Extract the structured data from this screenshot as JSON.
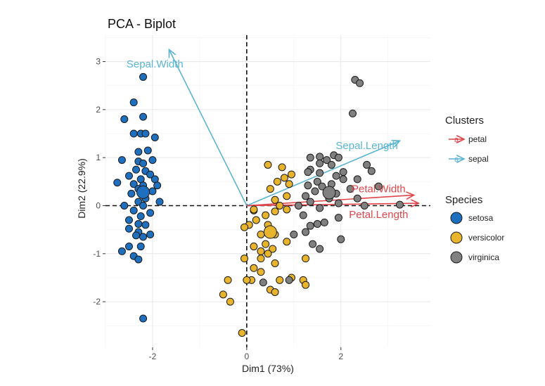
{
  "chart_data": {
    "type": "scatter",
    "title": "PCA - Biplot",
    "xlabel": "Dim1 (73%)",
    "ylabel": "Dim2 (22.9%)",
    "xlim": [
      -3.0,
      3.9
    ],
    "ylim": [
      -2.95,
      3.55
    ],
    "xticks": [
      -2,
      0,
      2
    ],
    "yticks": [
      -2,
      -1,
      0,
      1,
      2,
      3
    ],
    "grid": true,
    "legend_position": "right",
    "colors": {
      "setosa": "#1f6fbf",
      "versicolor": "#e7b42c",
      "virginica": "#808080",
      "petal": "#e0454a",
      "sepal": "#5ab4d3"
    },
    "legends": {
      "clusters": {
        "title": "Clusters",
        "items": [
          "petal",
          "sepal"
        ]
      },
      "species": {
        "title": "Species",
        "items": [
          "setosa",
          "versicolor",
          "virginica"
        ]
      }
    },
    "series": [
      {
        "name": "setosa",
        "points": [
          [
            -2.2,
            2.68
          ],
          [
            -2.4,
            2.15
          ],
          [
            -2.6,
            1.8
          ],
          [
            -2.2,
            1.85
          ],
          [
            -2.25,
            1.5
          ],
          [
            -2.15,
            1.5
          ],
          [
            -1.95,
            1.42
          ],
          [
            -2.4,
            1.5
          ],
          [
            -2.3,
            1.12
          ],
          [
            -2.1,
            1.15
          ],
          [
            -2.0,
            0.95
          ],
          [
            -2.65,
            0.95
          ],
          [
            -2.3,
            0.92
          ],
          [
            -2.2,
            0.88
          ],
          [
            -2.35,
            0.75
          ],
          [
            -2.15,
            0.72
          ],
          [
            -2.05,
            0.65
          ],
          [
            -2.5,
            0.62
          ],
          [
            -2.25,
            0.55
          ],
          [
            -1.95,
            0.55
          ],
          [
            -2.75,
            0.48
          ],
          [
            -2.4,
            0.45
          ],
          [
            -2.2,
            0.42
          ],
          [
            -1.9,
            0.42
          ],
          [
            -2.3,
            0.35
          ],
          [
            -2.0,
            0.3
          ],
          [
            -2.45,
            0.25
          ],
          [
            -2.15,
            0.15
          ],
          [
            -2.3,
            0.08
          ],
          [
            -1.85,
            0.08
          ],
          [
            -2.6,
            0.0
          ],
          [
            -2.2,
            0.0
          ],
          [
            -2.4,
            -0.1
          ],
          [
            -2.05,
            -0.15
          ],
          [
            -2.25,
            -0.22
          ],
          [
            -2.5,
            -0.3
          ],
          [
            -2.3,
            -0.38
          ],
          [
            -2.15,
            -0.4
          ],
          [
            -2.5,
            -0.48
          ],
          [
            -2.3,
            -0.55
          ],
          [
            -2.05,
            -0.6
          ],
          [
            -2.35,
            -0.62
          ],
          [
            -2.2,
            -0.65
          ],
          [
            -2.5,
            -0.85
          ],
          [
            -2.25,
            -0.85
          ],
          [
            -2.65,
            -0.95
          ],
          [
            -2.4,
            -1.05
          ],
          [
            -2.3,
            -1.12
          ],
          [
            -2.2,
            -2.35
          ]
        ]
      },
      {
        "name": "versicolor",
        "points": [
          [
            0.45,
            0.85
          ],
          [
            0.75,
            0.8
          ],
          [
            0.95,
            0.65
          ],
          [
            0.8,
            0.58
          ],
          [
            0.65,
            0.5
          ],
          [
            0.9,
            0.45
          ],
          [
            0.5,
            0.35
          ],
          [
            0.85,
            0.2
          ],
          [
            0.6,
            0.12
          ],
          [
            0.7,
            0.0
          ],
          [
            0.85,
            -0.08
          ],
          [
            0.6,
            -0.12
          ],
          [
            0.15,
            -0.1
          ],
          [
            0.4,
            -0.2
          ],
          [
            0.2,
            -0.3
          ],
          [
            0.05,
            -0.4
          ],
          [
            -0.05,
            -0.45
          ],
          [
            0.45,
            -0.4
          ],
          [
            0.3,
            -0.6
          ],
          [
            0.6,
            -0.6
          ],
          [
            0.85,
            -0.75
          ],
          [
            0.4,
            -0.8
          ],
          [
            0.15,
            -0.85
          ],
          [
            0.3,
            -0.95
          ],
          [
            0.55,
            -0.9
          ],
          [
            0.45,
            -1.0
          ],
          [
            0.3,
            -1.1
          ],
          [
            0.6,
            -1.2
          ],
          [
            -0.05,
            -1.1
          ],
          [
            0.15,
            -1.3
          ],
          [
            0.3,
            -1.38
          ],
          [
            1.25,
            -1.1
          ],
          [
            1.2,
            -1.55
          ],
          [
            1.25,
            -1.65
          ],
          [
            0.95,
            -1.5
          ],
          [
            0.1,
            -1.55
          ],
          [
            0.5,
            -1.75
          ],
          [
            0.6,
            -1.8
          ],
          [
            0.7,
            -1.55
          ],
          [
            0.0,
            -1.55
          ],
          [
            -0.4,
            -1.55
          ],
          [
            -0.5,
            -1.85
          ],
          [
            -0.35,
            -2.0
          ],
          [
            -0.1,
            -2.65
          ],
          [
            0.15,
            -0.08
          ]
        ]
      },
      {
        "name": "virginica",
        "points": [
          [
            2.3,
            2.62
          ],
          [
            2.4,
            2.55
          ],
          [
            2.25,
            1.92
          ],
          [
            1.55,
            1.02
          ],
          [
            1.85,
            1.05
          ],
          [
            1.95,
            1.0
          ],
          [
            1.35,
            1.0
          ],
          [
            1.7,
            0.95
          ],
          [
            1.55,
            0.88
          ],
          [
            1.8,
            0.85
          ],
          [
            1.35,
            0.75
          ],
          [
            2.05,
            0.7
          ],
          [
            1.3,
            0.7
          ],
          [
            1.55,
            0.68
          ],
          [
            1.9,
            0.62
          ],
          [
            2.55,
            0.85
          ],
          [
            2.65,
            0.72
          ],
          [
            2.35,
            0.55
          ],
          [
            2.05,
            0.55
          ],
          [
            1.5,
            0.5
          ],
          [
            1.8,
            0.45
          ],
          [
            1.6,
            0.4
          ],
          [
            1.3,
            0.42
          ],
          [
            2.2,
            0.35
          ],
          [
            2.8,
            0.4
          ],
          [
            1.45,
            0.3
          ],
          [
            1.9,
            0.25
          ],
          [
            1.25,
            0.2
          ],
          [
            2.35,
            0.15
          ],
          [
            1.75,
            0.15
          ],
          [
            1.35,
            0.08
          ],
          [
            1.95,
            0.05
          ],
          [
            2.5,
            0.0
          ],
          [
            3.25,
            0.02
          ],
          [
            1.1,
            0.0
          ],
          [
            1.55,
            -0.05
          ],
          [
            1.2,
            -0.2
          ],
          [
            1.95,
            -0.25
          ],
          [
            1.65,
            -0.35
          ],
          [
            1.5,
            -0.38
          ],
          [
            1.35,
            -0.42
          ],
          [
            1.25,
            -0.55
          ],
          [
            1.0,
            -0.6
          ],
          [
            2.0,
            -0.7
          ],
          [
            1.4,
            -0.8
          ],
          [
            1.55,
            -0.9
          ],
          [
            0.9,
            -1.55
          ],
          [
            0.35,
            -1.6
          ]
        ]
      }
    ],
    "centroids": [
      {
        "name": "setosa",
        "x": -2.2,
        "y": 0.28
      },
      {
        "name": "versicolor",
        "x": 0.5,
        "y": -0.55
      },
      {
        "name": "virginica",
        "x": 1.75,
        "y": 0.27
      }
    ],
    "variables": [
      {
        "name": "Sepal.Width",
        "cluster": "sepal",
        "x": -1.65,
        "y": 3.25,
        "label_anchor": "middle",
        "label_x": -1.95,
        "label_y": 2.95
      },
      {
        "name": "Sepal.Length",
        "cluster": "sepal",
        "x": 3.25,
        "y": 1.35,
        "label_anchor": "middle",
        "label_x": 2.55,
        "label_y": 1.25
      },
      {
        "name": "Petal.Width",
        "cluster": "petal",
        "x": 3.55,
        "y": 0.22,
        "label_anchor": "middle",
        "label_x": 2.8,
        "label_y": 0.35
      },
      {
        "name": "Petal.Length",
        "cluster": "petal",
        "x": 3.65,
        "y": 0.05,
        "label_anchor": "middle",
        "label_x": 2.8,
        "label_y": -0.18
      }
    ]
  }
}
